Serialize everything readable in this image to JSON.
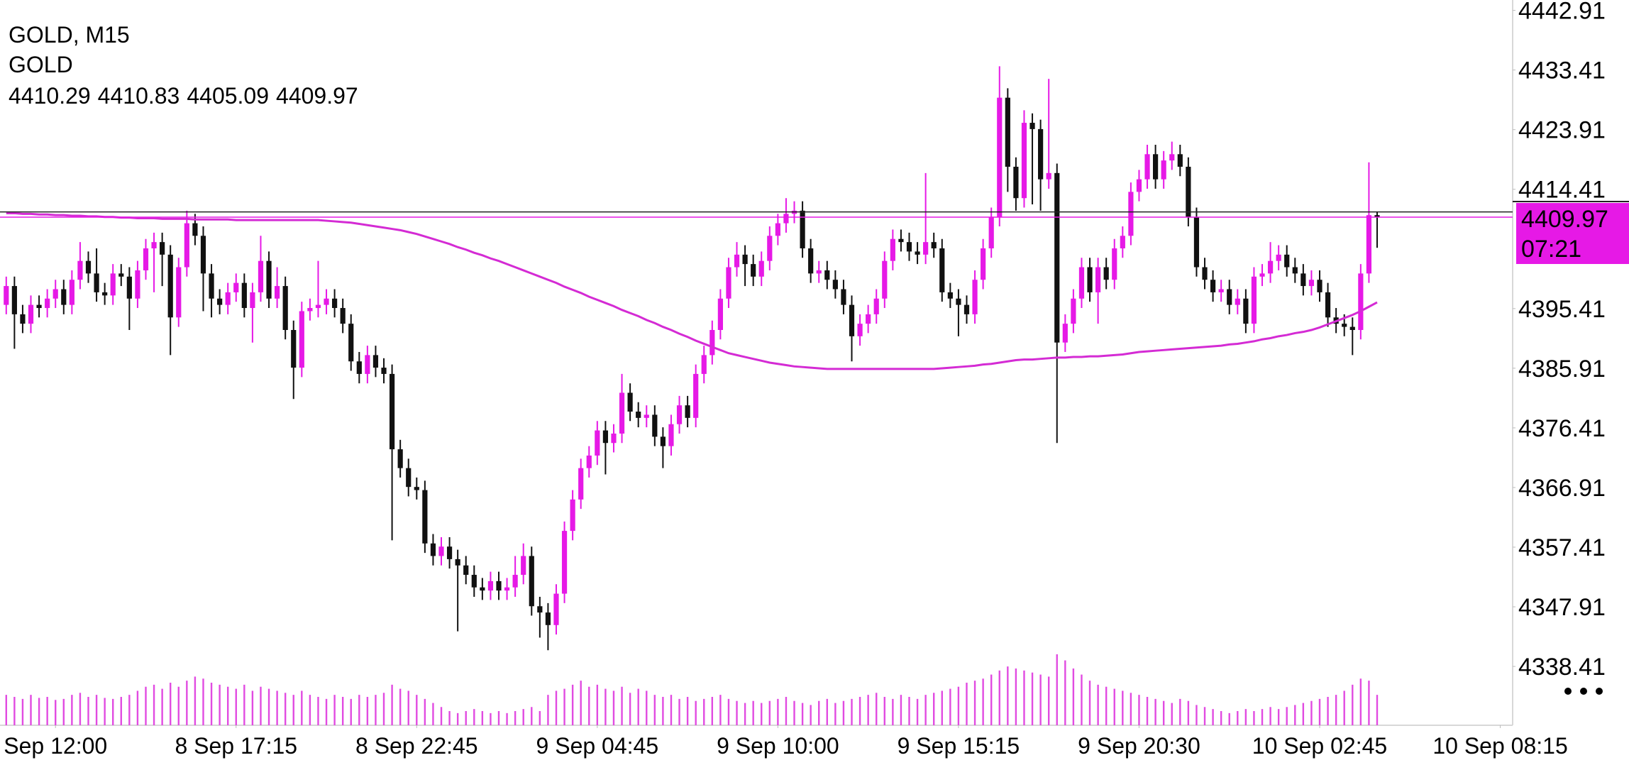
{
  "chart_data": {
    "type": "candlestick",
    "title": "GOLD, M15",
    "symbol": "GOLD",
    "timer": "07:21",
    "bull_color": "#e619e6",
    "bear_color": "#111111",
    "ma_color": "#d42bd4",
    "volume_color": "#e14be1",
    "ask_price": 4410.8,
    "ylim": [
      4329.04,
      4444.56
    ],
    "yticks": [
      4442.91,
      4433.41,
      4423.91,
      4414.41,
      4395.41,
      4385.91,
      4376.41,
      4366.91,
      4357.41,
      4347.91,
      4338.41
    ],
    "xticks": [
      {
        "value": 6,
        "label": "Sep 12:00"
      },
      {
        "value": 28,
        "label": "8 Sep 17:15"
      },
      {
        "value": 50,
        "label": "8 Sep 22:45"
      },
      {
        "value": 72,
        "label": "9 Sep 04:45"
      },
      {
        "value": 94,
        "label": "9 Sep 10:00"
      },
      {
        "value": 116,
        "label": "9 Sep 15:15"
      },
      {
        "value": 138,
        "label": "9 Sep 20:30"
      },
      {
        "value": 160,
        "label": "10 Sep 02:45"
      },
      {
        "value": 182,
        "label": "10 Sep 08:15"
      }
    ],
    "ohlc": [
      [
        4396,
        4400.5,
        4394.5,
        4399
      ],
      [
        4399,
        4400.5,
        4389,
        4394.5
      ],
      [
        4394.5,
        4396,
        4391.5,
        4393
      ],
      [
        4393,
        4397.5,
        4391.5,
        4396
      ],
      [
        4396,
        4397.5,
        4394,
        4395.5
      ],
      [
        4395.5,
        4398.5,
        4394,
        4397
      ],
      [
        4397,
        4400,
        4395.5,
        4398.5
      ],
      [
        4398.5,
        4400,
        4394.5,
        4396
      ],
      [
        4396,
        4401.5,
        4394.5,
        4400
      ],
      [
        4400,
        4406,
        4398.5,
        4403
      ],
      [
        4403,
        4404.5,
        4399.5,
        4401
      ],
      [
        4401,
        4405,
        4396.5,
        4398
      ],
      [
        4398,
        4399.5,
        4396,
        4397.5
      ],
      [
        4397.5,
        4402.5,
        4396,
        4401
      ],
      [
        4401,
        4402.5,
        4399,
        4400.5
      ],
      [
        4400.5,
        4402,
        4392,
        4397
      ],
      [
        4397,
        4403,
        4395.5,
        4401.5
      ],
      [
        4401.5,
        4406.5,
        4400,
        4405
      ],
      [
        4405,
        4407.5,
        4398,
        4406
      ],
      [
        4406,
        4407.5,
        4399,
        4404
      ],
      [
        4404,
        4405.5,
        4388,
        4394
      ],
      [
        4394,
        4403.5,
        4392.5,
        4402
      ],
      [
        4402,
        4411,
        4400.5,
        4409
      ],
      [
        4409,
        4410.5,
        4405.5,
        4407
      ],
      [
        4407,
        4408.5,
        4395,
        4401
      ],
      [
        4401,
        4402.5,
        4394,
        4397
      ],
      [
        4397,
        4398.5,
        4394.5,
        4396
      ],
      [
        4396,
        4399.5,
        4394.5,
        4398
      ],
      [
        4398,
        4401,
        4396.5,
        4399.5
      ],
      [
        4399.5,
        4401,
        4394,
        4395.5
      ],
      [
        4395.5,
        4399.5,
        4390,
        4398
      ],
      [
        4398,
        4407,
        4396.5,
        4403
      ],
      [
        4403,
        4404.5,
        4395.5,
        4397
      ],
      [
        4397,
        4402,
        4395.5,
        4399
      ],
      [
        4399,
        4400.5,
        4390.5,
        4392
      ],
      [
        4392,
        4393.5,
        4381,
        4386
      ],
      [
        4386,
        4396.5,
        4384.5,
        4395
      ],
      [
        4395,
        4397,
        4393.5,
        4395.5
      ],
      [
        4395.5,
        4403,
        4394,
        4396
      ],
      [
        4396,
        4398.5,
        4394.5,
        4397
      ],
      [
        4397,
        4398.5,
        4394,
        4395.5
      ],
      [
        4395.5,
        4397,
        4391.5,
        4393
      ],
      [
        4393,
        4394.5,
        4385.5,
        4387
      ],
      [
        4387,
        4388.5,
        4383.5,
        4385
      ],
      [
        4385,
        4389.5,
        4383.5,
        4388
      ],
      [
        4388,
        4389.5,
        4384.5,
        4386
      ],
      [
        4386,
        4387.5,
        4383.5,
        4385
      ],
      [
        4385,
        4386.5,
        4358.5,
        4373
      ],
      [
        4373,
        4374.5,
        4368.5,
        4370
      ],
      [
        4370,
        4371.5,
        4365.5,
        4367
      ],
      [
        4367,
        4368.5,
        4365,
        4366.5
      ],
      [
        4366.5,
        4368,
        4356.5,
        4358
      ],
      [
        4358,
        4359.5,
        4354.5,
        4356
      ],
      [
        4356,
        4359,
        4354.5,
        4357.5
      ],
      [
        4357.5,
        4359,
        4354,
        4355.5
      ],
      [
        4355.5,
        4357,
        4344,
        4354.5
      ],
      [
        4354.5,
        4356,
        4351.5,
        4353
      ],
      [
        4353,
        4354.5,
        4349.5,
        4351
      ],
      [
        4351,
        4352.5,
        4349,
        4350.5
      ],
      [
        4350.5,
        4353.5,
        4349,
        4352
      ],
      [
        4352,
        4353.5,
        4349,
        4350.5
      ],
      [
        4350.5,
        4352.5,
        4349,
        4351
      ],
      [
        4351,
        4356,
        4349.5,
        4353
      ],
      [
        4353,
        4358,
        4351.5,
        4356
      ],
      [
        4356,
        4357.5,
        4346.5,
        4348
      ],
      [
        4348,
        4349.5,
        4343,
        4347
      ],
      [
        4347,
        4348.5,
        4341,
        4345
      ],
      [
        4345,
        4351.5,
        4343.5,
        4350
      ],
      [
        4350,
        4361.5,
        4348.5,
        4360
      ],
      [
        4360,
        4366.5,
        4358.5,
        4365
      ],
      [
        4365,
        4371.5,
        4363.5,
        4370
      ],
      [
        4370,
        4373.5,
        4368.5,
        4372
      ],
      [
        4372,
        4377.5,
        4370.5,
        4376
      ],
      [
        4376,
        4377.5,
        4369,
        4374
      ],
      [
        4374,
        4377,
        4372.5,
        4375.5
      ],
      [
        4375.5,
        4385,
        4374,
        4382
      ],
      [
        4382,
        4383.5,
        4377.5,
        4379
      ],
      [
        4379,
        4380.5,
        4376.5,
        4378
      ],
      [
        4378,
        4380,
        4376.5,
        4378.5
      ],
      [
        4378.5,
        4380,
        4373.5,
        4375
      ],
      [
        4375,
        4376.5,
        4370,
        4373.5
      ],
      [
        4373.5,
        4378.5,
        4372,
        4377
      ],
      [
        4377,
        4381.5,
        4375.5,
        4380
      ],
      [
        4380,
        4381.5,
        4376.5,
        4378
      ],
      [
        4378,
        4386.5,
        4376.5,
        4385
      ],
      [
        4385,
        4389.5,
        4383.5,
        4388
      ],
      [
        4388,
        4393.5,
        4386.5,
        4392
      ],
      [
        4392,
        4398.5,
        4390.5,
        4397
      ],
      [
        4397,
        4403.5,
        4395.5,
        4402
      ],
      [
        4402,
        4406,
        4400.5,
        4404
      ],
      [
        4404,
        4405.5,
        4399,
        4402.5
      ],
      [
        4402.5,
        4404,
        4399,
        4400.5
      ],
      [
        4400.5,
        4404.5,
        4399,
        4403
      ],
      [
        4403,
        4408.5,
        4401.5,
        4407
      ],
      [
        4407,
        4410.5,
        4405.5,
        4409
      ],
      [
        4409,
        4413,
        4407.5,
        4410.5
      ],
      [
        4410.5,
        4412.5,
        4409,
        4411
      ],
      [
        4411,
        4412.5,
        4403.5,
        4405
      ],
      [
        4405,
        4406.5,
        4399.5,
        4401
      ],
      [
        4401,
        4403,
        4399.5,
        4401.5
      ],
      [
        4401.5,
        4403,
        4398.5,
        4400
      ],
      [
        4400,
        4401.5,
        4397,
        4398.5
      ],
      [
        4398.5,
        4400,
        4394.5,
        4396
      ],
      [
        4396,
        4397.5,
        4387,
        4391
      ],
      [
        4391,
        4394.5,
        4389.5,
        4393
      ],
      [
        4393,
        4396,
        4391.5,
        4394.5
      ],
      [
        4394.5,
        4398.5,
        4393,
        4397
      ],
      [
        4397,
        4404.5,
        4395.5,
        4403
      ],
      [
        4403,
        4408,
        4401.5,
        4406.5
      ],
      [
        4406.5,
        4408,
        4404.5,
        4406
      ],
      [
        4406,
        4407.5,
        4403,
        4404.5
      ],
      [
        4404.5,
        4406,
        4402.5,
        4404
      ],
      [
        4404,
        4417,
        4402.5,
        4406
      ],
      [
        4406,
        4407.5,
        4403.5,
        4405
      ],
      [
        4405,
        4406.5,
        4396.5,
        4398
      ],
      [
        4398,
        4399.5,
        4395.5,
        4397
      ],
      [
        4397,
        4398.5,
        4391,
        4396
      ],
      [
        4396,
        4397.5,
        4393,
        4394.5
      ],
      [
        4394.5,
        4401.5,
        4393,
        4400
      ],
      [
        4400,
        4406.5,
        4398.5,
        4405
      ],
      [
        4405,
        4411.5,
        4403.5,
        4410
      ],
      [
        4410,
        4434,
        4408.5,
        4429
      ],
      [
        4429,
        4430.5,
        4414,
        4418
      ],
      [
        4418,
        4419.5,
        4411,
        4413
      ],
      [
        4413,
        4427,
        4411.5,
        4425
      ],
      [
        4425,
        4426.5,
        4412,
        4424
      ],
      [
        4424,
        4425.5,
        4411,
        4416
      ],
      [
        4416,
        4432,
        4414.5,
        4417
      ],
      [
        4417,
        4418.5,
        4374,
        4390
      ],
      [
        4390,
        4394.5,
        4388.5,
        4393
      ],
      [
        4393,
        4398.5,
        4391.5,
        4397
      ],
      [
        4397,
        4403.5,
        4395.5,
        4402
      ],
      [
        4402,
        4403.5,
        4396.5,
        4398
      ],
      [
        4398,
        4403.5,
        4393,
        4402
      ],
      [
        4402,
        4403.5,
        4398.5,
        4400
      ],
      [
        4400,
        4406.5,
        4398.5,
        4405
      ],
      [
        4405,
        4408.5,
        4403.5,
        4407
      ],
      [
        4407,
        4415.5,
        4405.5,
        4414
      ],
      [
        4414,
        4417.5,
        4412.5,
        4416
      ],
      [
        4416,
        4421.5,
        4414.5,
        4420
      ],
      [
        4420,
        4421.5,
        4414.5,
        4416
      ],
      [
        4416,
        4420.5,
        4414.5,
        4419
      ],
      [
        4419,
        4422,
        4417.5,
        4420
      ],
      [
        4420,
        4421.5,
        4416.5,
        4418
      ],
      [
        4418,
        4419.5,
        4408.5,
        4410
      ],
      [
        4410,
        4411.5,
        4400.5,
        4402
      ],
      [
        4402,
        4403.5,
        4398.5,
        4400
      ],
      [
        4400,
        4401.5,
        4396.5,
        4398
      ],
      [
        4398,
        4400,
        4396.5,
        4398.5
      ],
      [
        4398.5,
        4400,
        4394.5,
        4396
      ],
      [
        4396,
        4398.5,
        4394.5,
        4397
      ],
      [
        4397,
        4398.5,
        4391.5,
        4393
      ],
      [
        4393,
        4402,
        4391.5,
        4400.5
      ],
      [
        4400.5,
        4402.5,
        4399,
        4401
      ],
      [
        4401,
        4406,
        4399.5,
        4403
      ],
      [
        4403,
        4405.5,
        4401.5,
        4404
      ],
      [
        4404,
        4405.5,
        4400.5,
        4402
      ],
      [
        4402,
        4403.5,
        4399.5,
        4401
      ],
      [
        4401,
        4402.5,
        4397.5,
        4399
      ],
      [
        4399,
        4401.5,
        4397.5,
        4400
      ],
      [
        4400,
        4401.5,
        4396.5,
        4398
      ],
      [
        4398,
        4399.5,
        4392.5,
        4394
      ],
      [
        4394,
        4395.5,
        4391.5,
        4393
      ],
      [
        4393,
        4394.5,
        4391,
        4392.5
      ],
      [
        4392.5,
        4394,
        4388,
        4392
      ],
      [
        4392,
        4402.5,
        4390.5,
        4401
      ],
      [
        4401,
        4418.7,
        4399.5,
        4410.29
      ],
      [
        4410.29,
        4410.83,
        4405.09,
        4409.97
      ]
    ],
    "ma": [
      4410.6,
      4410.6,
      4410.5,
      4410.5,
      4410.4,
      4410.4,
      4410.3,
      4410.3,
      4410.2,
      4410.2,
      4410.1,
      4410.1,
      4410.0,
      4410.0,
      4409.9,
      4409.9,
      4409.8,
      4409.8,
      4409.8,
      4409.7,
      4409.7,
      4409.7,
      4409.7,
      4409.6,
      4409.6,
      4409.6,
      4409.6,
      4409.6,
      4409.5,
      4409.5,
      4409.5,
      4409.5,
      4409.5,
      4409.5,
      4409.5,
      4409.5,
      4409.5,
      4409.5,
      4409.5,
      4409.4,
      4409.3,
      4409.2,
      4409.1,
      4408.9,
      4408.7,
      4408.5,
      4408.3,
      4408.1,
      4407.9,
      4407.6,
      4407.3,
      4406.9,
      4406.5,
      4406.1,
      4405.7,
      4405.2,
      4404.8,
      4404.3,
      4403.9,
      4403.4,
      4403.0,
      4402.5,
      4402.0,
      4401.5,
      4401.0,
      4400.5,
      4400.0,
      4399.5,
      4398.9,
      4398.4,
      4397.9,
      4397.3,
      4396.8,
      4396.3,
      4395.8,
      4395.2,
      4394.7,
      4394.2,
      4393.6,
      4393.1,
      4392.5,
      4392.0,
      4391.4,
      4390.9,
      4390.3,
      4389.8,
      4389.3,
      4388.8,
      4388.3,
      4388.0,
      4387.7,
      4387.4,
      4387.1,
      4386.8,
      4386.6,
      4386.4,
      4386.2,
      4386.1,
      4386.0,
      4385.9,
      4385.8,
      4385.8,
      4385.8,
      4385.8,
      4385.8,
      4385.8,
      4385.8,
      4385.8,
      4385.8,
      4385.8,
      4385.8,
      4385.8,
      4385.8,
      4385.8,
      4385.9,
      4386.0,
      4386.1,
      4386.2,
      4386.3,
      4386.5,
      4386.6,
      4386.8,
      4387.0,
      4387.2,
      4387.3,
      4387.3,
      4387.4,
      4387.5,
      4387.6,
      4387.6,
      4387.7,
      4387.7,
      4387.8,
      4387.8,
      4387.9,
      4388.0,
      4388.1,
      4388.3,
      4388.5,
      4388.6,
      4388.7,
      4388.8,
      4388.9,
      4389.0,
      4389.1,
      4389.2,
      4389.3,
      4389.4,
      4389.5,
      4389.7,
      4389.8,
      4390.0,
      4390.2,
      4390.5,
      4390.7,
      4391.0,
      4391.2,
      4391.5,
      4391.7,
      4392.0,
      4392.4,
      4392.9,
      4393.4,
      4393.9,
      4394.4,
      4395.0,
      4395.7,
      4396.4
    ],
    "volume": [
      30,
      28,
      26,
      30,
      27,
      28,
      25,
      26,
      30,
      32,
      28,
      30,
      27,
      26,
      28,
      30,
      34,
      38,
      40,
      36,
      42,
      38,
      44,
      48,
      46,
      42,
      40,
      38,
      36,
      40,
      34,
      38,
      36,
      34,
      32,
      30,
      34,
      30,
      28,
      26,
      30,
      28,
      26,
      30,
      28,
      30,
      32,
      40,
      36,
      34,
      30,
      26,
      22,
      18,
      14,
      12,
      14,
      16,
      14,
      12,
      14,
      12,
      14,
      16,
      18,
      14,
      30,
      34,
      36,
      40,
      44,
      38,
      40,
      36,
      34,
      38,
      32,
      36,
      34,
      30,
      28,
      30,
      26,
      28,
      24,
      26,
      28,
      30,
      26,
      24,
      22,
      24,
      22,
      24,
      26,
      28,
      24,
      22,
      20,
      24,
      26,
      22,
      24,
      26,
      28,
      30,
      32,
      28,
      26,
      30,
      28,
      26,
      30,
      32,
      34,
      36,
      38,
      42,
      44,
      46,
      50,
      54,
      58,
      56,
      54,
      52,
      50,
      48,
      70,
      64,
      56,
      50,
      44,
      40,
      38,
      36,
      34,
      32,
      30,
      28,
      26,
      24,
      22,
      26,
      24,
      20,
      18,
      16,
      14,
      12,
      14,
      16,
      14,
      16,
      18,
      16,
      18,
      20,
      22,
      24,
      26,
      28,
      30,
      34,
      40,
      46,
      44,
      30
    ]
  }
}
